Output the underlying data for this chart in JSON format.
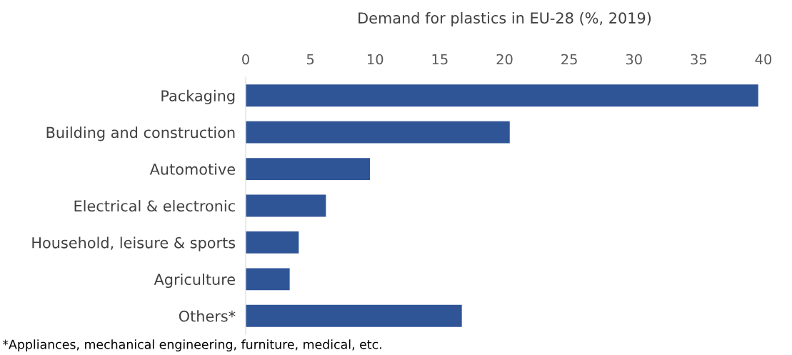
{
  "chart_data": {
    "type": "bar",
    "orientation": "horizontal",
    "title": "Demand for plastics in EU-28 (%, 2019)",
    "categories": [
      "Packaging",
      "Building and construction",
      "Automotive",
      "Electrical & electronic",
      "Household, leisure & sports",
      "Agriculture",
      "Others*"
    ],
    "values": [
      39.6,
      20.4,
      9.6,
      6.2,
      4.1,
      3.4,
      16.7
    ],
    "color": "#2f5597",
    "xlim": [
      0,
      40
    ],
    "xticks": [
      0,
      5,
      10,
      15,
      20,
      25,
      30,
      35,
      40
    ],
    "grid": false,
    "annotations": [
      "*Appliances, mechanical engineering, furniture, medical, etc."
    ]
  }
}
